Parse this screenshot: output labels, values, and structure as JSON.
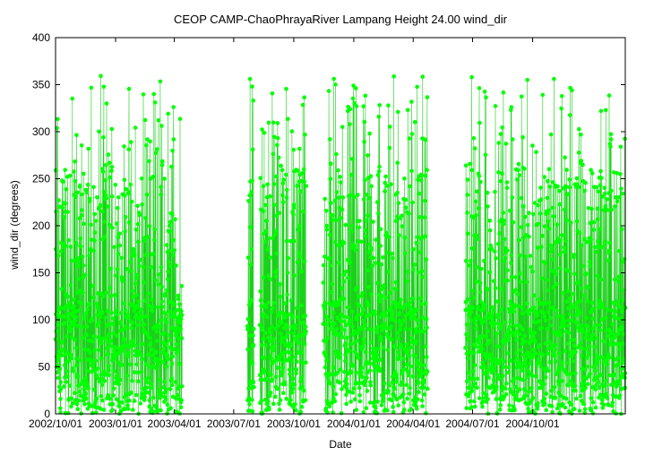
{
  "chart_data": {
    "type": "scatter",
    "title": "CEOP CAMP-ChaoPhrayaRiver Lampang Height 24.00 wind_dir",
    "xlabel": "Date",
    "ylabel": "wind_dir (degrees)",
    "xlim": [
      "2002-10-01",
      "2005-02-20"
    ],
    "ylim": [
      0,
      400
    ],
    "yticks": [
      0,
      50,
      100,
      150,
      200,
      250,
      300,
      350,
      400
    ],
    "xticks": [
      "2002/10/01",
      "2003/01/01",
      "2003/04/01",
      "2003/07/01",
      "2003/10/01",
      "2004/01/01",
      "2004/04/01",
      "2004/07/01",
      "2004/10/01"
    ],
    "xtick_dates": [
      "2002-10-01",
      "2003-01-01",
      "2003-04-01",
      "2003-07-01",
      "2003-10-01",
      "2004-01-01",
      "2004-04-01",
      "2004-07-01",
      "2004-10-01"
    ],
    "data_ranges": [
      {
        "start": "2002-10-01",
        "end": "2003-04-13"
      },
      {
        "start": "2003-07-22",
        "end": "2003-08-01"
      },
      {
        "start": "2003-08-10",
        "end": "2003-10-20"
      },
      {
        "start": "2003-11-15",
        "end": "2004-04-23"
      },
      {
        "start": "2004-06-20",
        "end": "2005-02-20"
      }
    ],
    "y_range": [
      0,
      360
    ],
    "grid": false,
    "legend": "none",
    "color": "#00ff00",
    "line_color": "#00cc00"
  }
}
